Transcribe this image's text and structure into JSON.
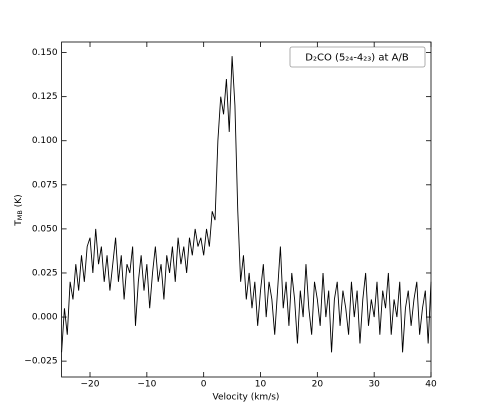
{
  "chart_data": {
    "type": "line",
    "annotation": "D₂CO (5₂₄-4₂₃) at A/B",
    "xlabel": "Velocity (km/s)",
    "ylabel": [
      "T",
      "MB",
      " (K)"
    ],
    "xlim": [
      -25,
      40
    ],
    "xticks": [
      {
        "value": -20,
        "label": "−20"
      },
      {
        "value": -10,
        "label": "−10"
      },
      0,
      10,
      20,
      30,
      40
    ],
    "ylim": [
      -0.034,
      0.156
    ],
    "yticks": [
      {
        "value": -0.025,
        "label": "−0.025"
      },
      {
        "value": 0,
        "label": "0.000"
      },
      0.025,
      {
        "value": 0.05,
        "label": "0.050"
      },
      0.075,
      {
        "value": 0.1,
        "label": "0.100"
      },
      0.125,
      {
        "value": 0.15,
        "label": "0.150"
      }
    ],
    "grid": false,
    "x": [
      -25,
      -24.5,
      -24,
      -23.5,
      -23,
      -22.5,
      -22,
      -21.5,
      -21,
      -20.5,
      -20,
      -19.5,
      -19,
      -18.5,
      -18,
      -17.5,
      -17,
      -16.5,
      -16,
      -15.5,
      -15,
      -14.5,
      -14,
      -13.5,
      -13,
      -12.5,
      -12,
      -11.5,
      -11,
      -10.5,
      -10,
      -9.5,
      -9,
      -8.5,
      -8,
      -7.5,
      -7,
      -6.5,
      -6,
      -5.5,
      -5,
      -4.5,
      -4,
      -3.5,
      -3,
      -2.5,
      -2,
      -1.5,
      -1,
      -0.5,
      0,
      0.5,
      1,
      1.5,
      2,
      2.5,
      3,
      3.5,
      4,
      4.5,
      5,
      5.5,
      6,
      6.5,
      7,
      7.5,
      8,
      8.5,
      9,
      9.5,
      10,
      10.5,
      11,
      11.5,
      12,
      12.5,
      13,
      13.5,
      14,
      14.5,
      15,
      15.5,
      16,
      16.5,
      17,
      17.5,
      18,
      18.5,
      19,
      19.5,
      20,
      20.5,
      21,
      21.5,
      22,
      22.5,
      23,
      23.5,
      24,
      24.5,
      25,
      25.5,
      26,
      26.5,
      27,
      27.5,
      28,
      28.5,
      29,
      29.5,
      30,
      30.5,
      31,
      31.5,
      32,
      32.5,
      33,
      33.5,
      34,
      34.5,
      35,
      35.5,
      36,
      36.5,
      37,
      37.5,
      38,
      38.5,
      39,
      39.5,
      40
    ],
    "series": [
      {
        "color": "#000000",
        "values": [
          -0.02,
          0.005,
          -0.01,
          0.02,
          0.01,
          0.03,
          0.015,
          0.035,
          0.02,
          0.04,
          0.045,
          0.025,
          0.05,
          0.03,
          0.04,
          0.02,
          0.035,
          0.015,
          0.03,
          0.045,
          0.02,
          0.035,
          0.01,
          0.03,
          0.025,
          0.04,
          -0.005,
          0.02,
          0.035,
          0.015,
          0.03,
          0.005,
          0.025,
          0.04,
          0.02,
          0.03,
          0.01,
          0.035,
          0.025,
          0.04,
          0.02,
          0.045,
          0.03,
          0.04,
          0.025,
          0.045,
          0.035,
          0.05,
          0.04,
          0.045,
          0.035,
          0.05,
          0.04,
          0.06,
          0.055,
          0.1,
          0.125,
          0.115,
          0.135,
          0.105,
          0.148,
          0.12,
          0.06,
          0.02,
          0.035,
          0.01,
          0.025,
          0.005,
          0.02,
          -0.005,
          0.015,
          0.03,
          0,
          0.02,
          0.01,
          -0.01,
          0.015,
          0.04,
          0.005,
          0.02,
          -0.005,
          0.025,
          0.01,
          -0.015,
          0.015,
          0,
          0.03,
          0.005,
          -0.01,
          0.02,
          0.01,
          -0.005,
          0.025,
          0,
          0.015,
          -0.02,
          0.01,
          0.02,
          -0.005,
          0.015,
          0.005,
          -0.01,
          0.02,
          0,
          0.015,
          -0.015,
          0.01,
          0.025,
          -0.005,
          0.01,
          0,
          0.02,
          -0.01,
          0.015,
          0.005,
          0.025,
          -0.01,
          0.01,
          0,
          0.02,
          -0.02,
          0.005,
          0.015,
          -0.005,
          0.01,
          0.02,
          -0.01,
          0.005,
          0.015,
          -0.015,
          0.02
        ]
      }
    ]
  }
}
